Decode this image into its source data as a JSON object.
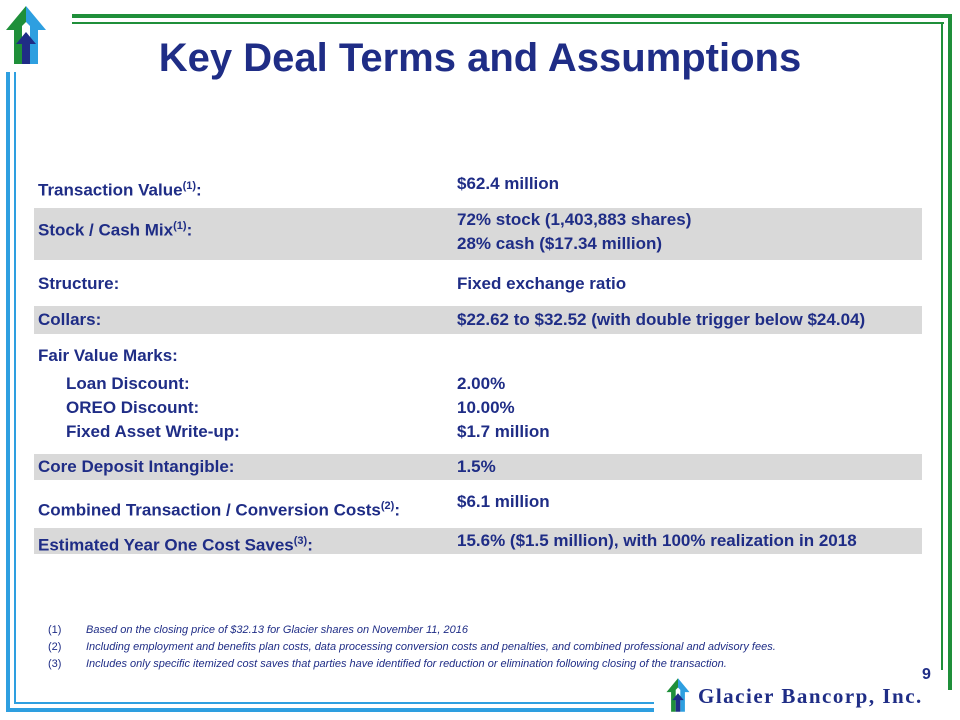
{
  "slide": {
    "title": "Key Deal Terms and Assumptions",
    "page_number": "9"
  },
  "terms": [
    {
      "label": "Transaction Value",
      "sup": "(1)",
      "suffix": ":",
      "value_lines": [
        "$62.4 million"
      ],
      "shaded": false
    },
    {
      "label": "Stock / Cash Mix",
      "sup": "(1)",
      "suffix": ":",
      "value_lines": [
        "72% stock (1,403,883 shares)",
        "28% cash ($17.34 million)"
      ],
      "shaded": true
    },
    {
      "label": "Structure:",
      "value_lines": [
        "Fixed exchange ratio"
      ],
      "shaded": false
    },
    {
      "label": "Collars:",
      "value_lines": [
        "$22.62 to $32.52 (with double trigger below $24.04)"
      ],
      "shaded": true
    },
    {
      "label": "Fair Value Marks:",
      "value_lines": [],
      "shaded": false
    },
    {
      "label": "Loan Discount:",
      "value_lines": [
        "2.00%"
      ],
      "shaded": false,
      "indent": true
    },
    {
      "label": "OREO Discount:",
      "value_lines": [
        "10.00%"
      ],
      "shaded": false,
      "indent": true
    },
    {
      "label": "Fixed Asset Write-up:",
      "value_lines": [
        "$1.7 million"
      ],
      "shaded": false,
      "indent": true
    },
    {
      "label": "Core Deposit Intangible:",
      "value_lines": [
        "1.5%"
      ],
      "shaded": true
    },
    {
      "label": "Combined Transaction / Conversion Costs",
      "sup": "(2)",
      "suffix": ":",
      "value_lines": [
        "$6.1 million"
      ],
      "shaded": false
    },
    {
      "label": "Estimated Year One Cost Saves",
      "sup": "(3)",
      "suffix": ":",
      "value_lines": [
        "15.6% ($1.5 million), with 100% realization in 2018"
      ],
      "shaded": true
    }
  ],
  "footnotes": [
    {
      "num": "(1)",
      "text": "Based on the closing price of $32.13 for Glacier shares on November 11, 2016"
    },
    {
      "num": "(2)",
      "text": "Including employment and benefits plan costs, data processing conversion costs and penalties, and combined professional and advisory fees."
    },
    {
      "num": "(3)",
      "text": "Includes only specific itemized cost saves that parties have identified for reduction or elimination following closing of the transaction."
    }
  ],
  "brand": {
    "name": "Glacier Bancorp, Inc."
  },
  "colors": {
    "title": "#1f2d86",
    "frame_green": "#1f8f3a",
    "frame_blue": "#2e9fe0",
    "row_shade": "#d9d9d9"
  },
  "icons": [
    "glacier-logo-icon"
  ]
}
